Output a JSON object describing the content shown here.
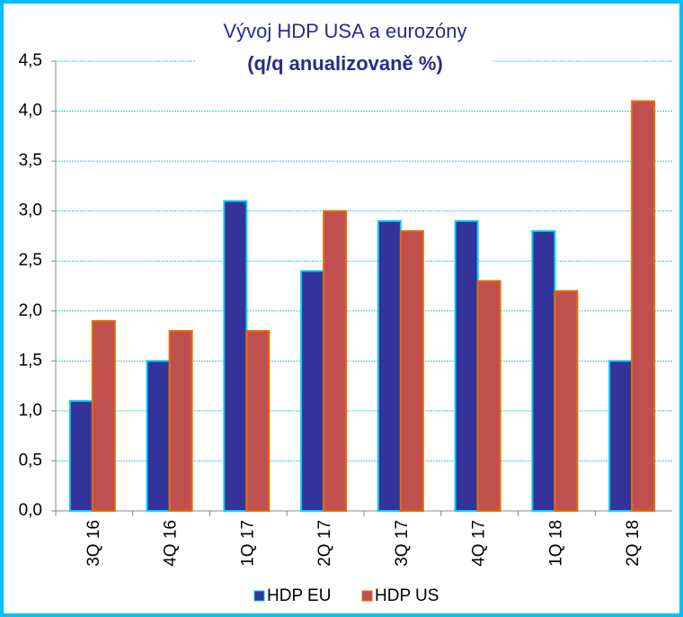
{
  "chart_data": {
    "type": "bar",
    "title": "Vývoj HDP USA a eurozóny",
    "subtitle": "(q/q anualizovaně %)",
    "categories": [
      "3Q 16",
      "4Q 16",
      "1Q 17",
      "2Q 17",
      "3Q 17",
      "4Q 17",
      "1Q 18",
      "2Q 18"
    ],
    "series": [
      {
        "name": "HDP EU",
        "color": "#333399",
        "values": [
          1.1,
          1.5,
          3.1,
          2.4,
          2.9,
          2.9,
          2.8,
          1.5
        ]
      },
      {
        "name": "HDP US",
        "color": "#c0504d",
        "values": [
          1.9,
          1.8,
          1.8,
          3.0,
          2.8,
          2.3,
          2.2,
          4.1
        ]
      }
    ],
    "ylim": [
      0,
      4.5
    ],
    "yticks": [
      {
        "value": 0,
        "label": "0,0"
      },
      {
        "value": 0.5,
        "label": "0,5"
      },
      {
        "value": 1,
        "label": "1,0"
      },
      {
        "value": 1.5,
        "label": "1,5"
      },
      {
        "value": 2,
        "label": "2,0"
      },
      {
        "value": 2.5,
        "label": "2,5"
      },
      {
        "value": 3,
        "label": "3,0"
      },
      {
        "value": 3.5,
        "label": "3,5"
      },
      {
        "value": 4,
        "label": "4,0"
      },
      {
        "value": 4.5,
        "label": "4,5"
      }
    ],
    "grid": true
  }
}
